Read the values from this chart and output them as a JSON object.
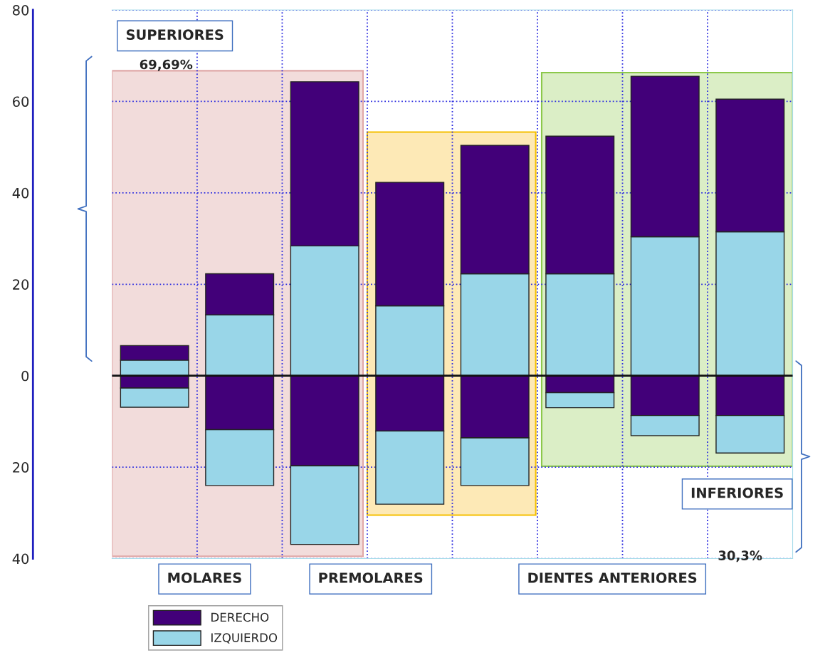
{
  "chart_data": {
    "type": "bar",
    "stacked": true,
    "categories": [
      null,
      null,
      null,
      null,
      null,
      null,
      null,
      null
    ],
    "series": [
      {
        "name": "IZQUIERDO",
        "color": "#99d6e8",
        "values": [
          3.4,
          13.3,
          28.4,
          15.3,
          22.3,
          22.3,
          30.4,
          31.5
        ]
      },
      {
        "name": "DERECHO",
        "color": "#420079",
        "values": [
          3.2,
          9.0,
          35.9,
          27.0,
          28.1,
          30.1,
          35.1,
          29.0
        ]
      },
      {
        "color": "#420079",
        "values": [
          -2.7,
          -11.8,
          -19.7,
          -12.1,
          -13.6,
          -3.7,
          -8.7,
          -8.7
        ]
      },
      {
        "color": "#99d6e8",
        "values": [
          -4.2,
          -12.2,
          -17.2,
          -16.0,
          -10.4,
          -3.3,
          -4.4,
          -8.2
        ]
      }
    ],
    "ylim": [
      -40,
      80
    ],
    "yticks": [
      {
        "value": -40,
        "label": "40"
      },
      {
        "value": -20,
        "label": "20"
      },
      0,
      20,
      40,
      60,
      80
    ],
    "grid": true,
    "legend": "bottom left",
    "annotations": [
      "SUPERIORES",
      "69,69%",
      "INFERIORES",
      "30,3%",
      "MOLARES",
      "PREMOLARES",
      "DIENTES ANTERIORES"
    ]
  }
}
